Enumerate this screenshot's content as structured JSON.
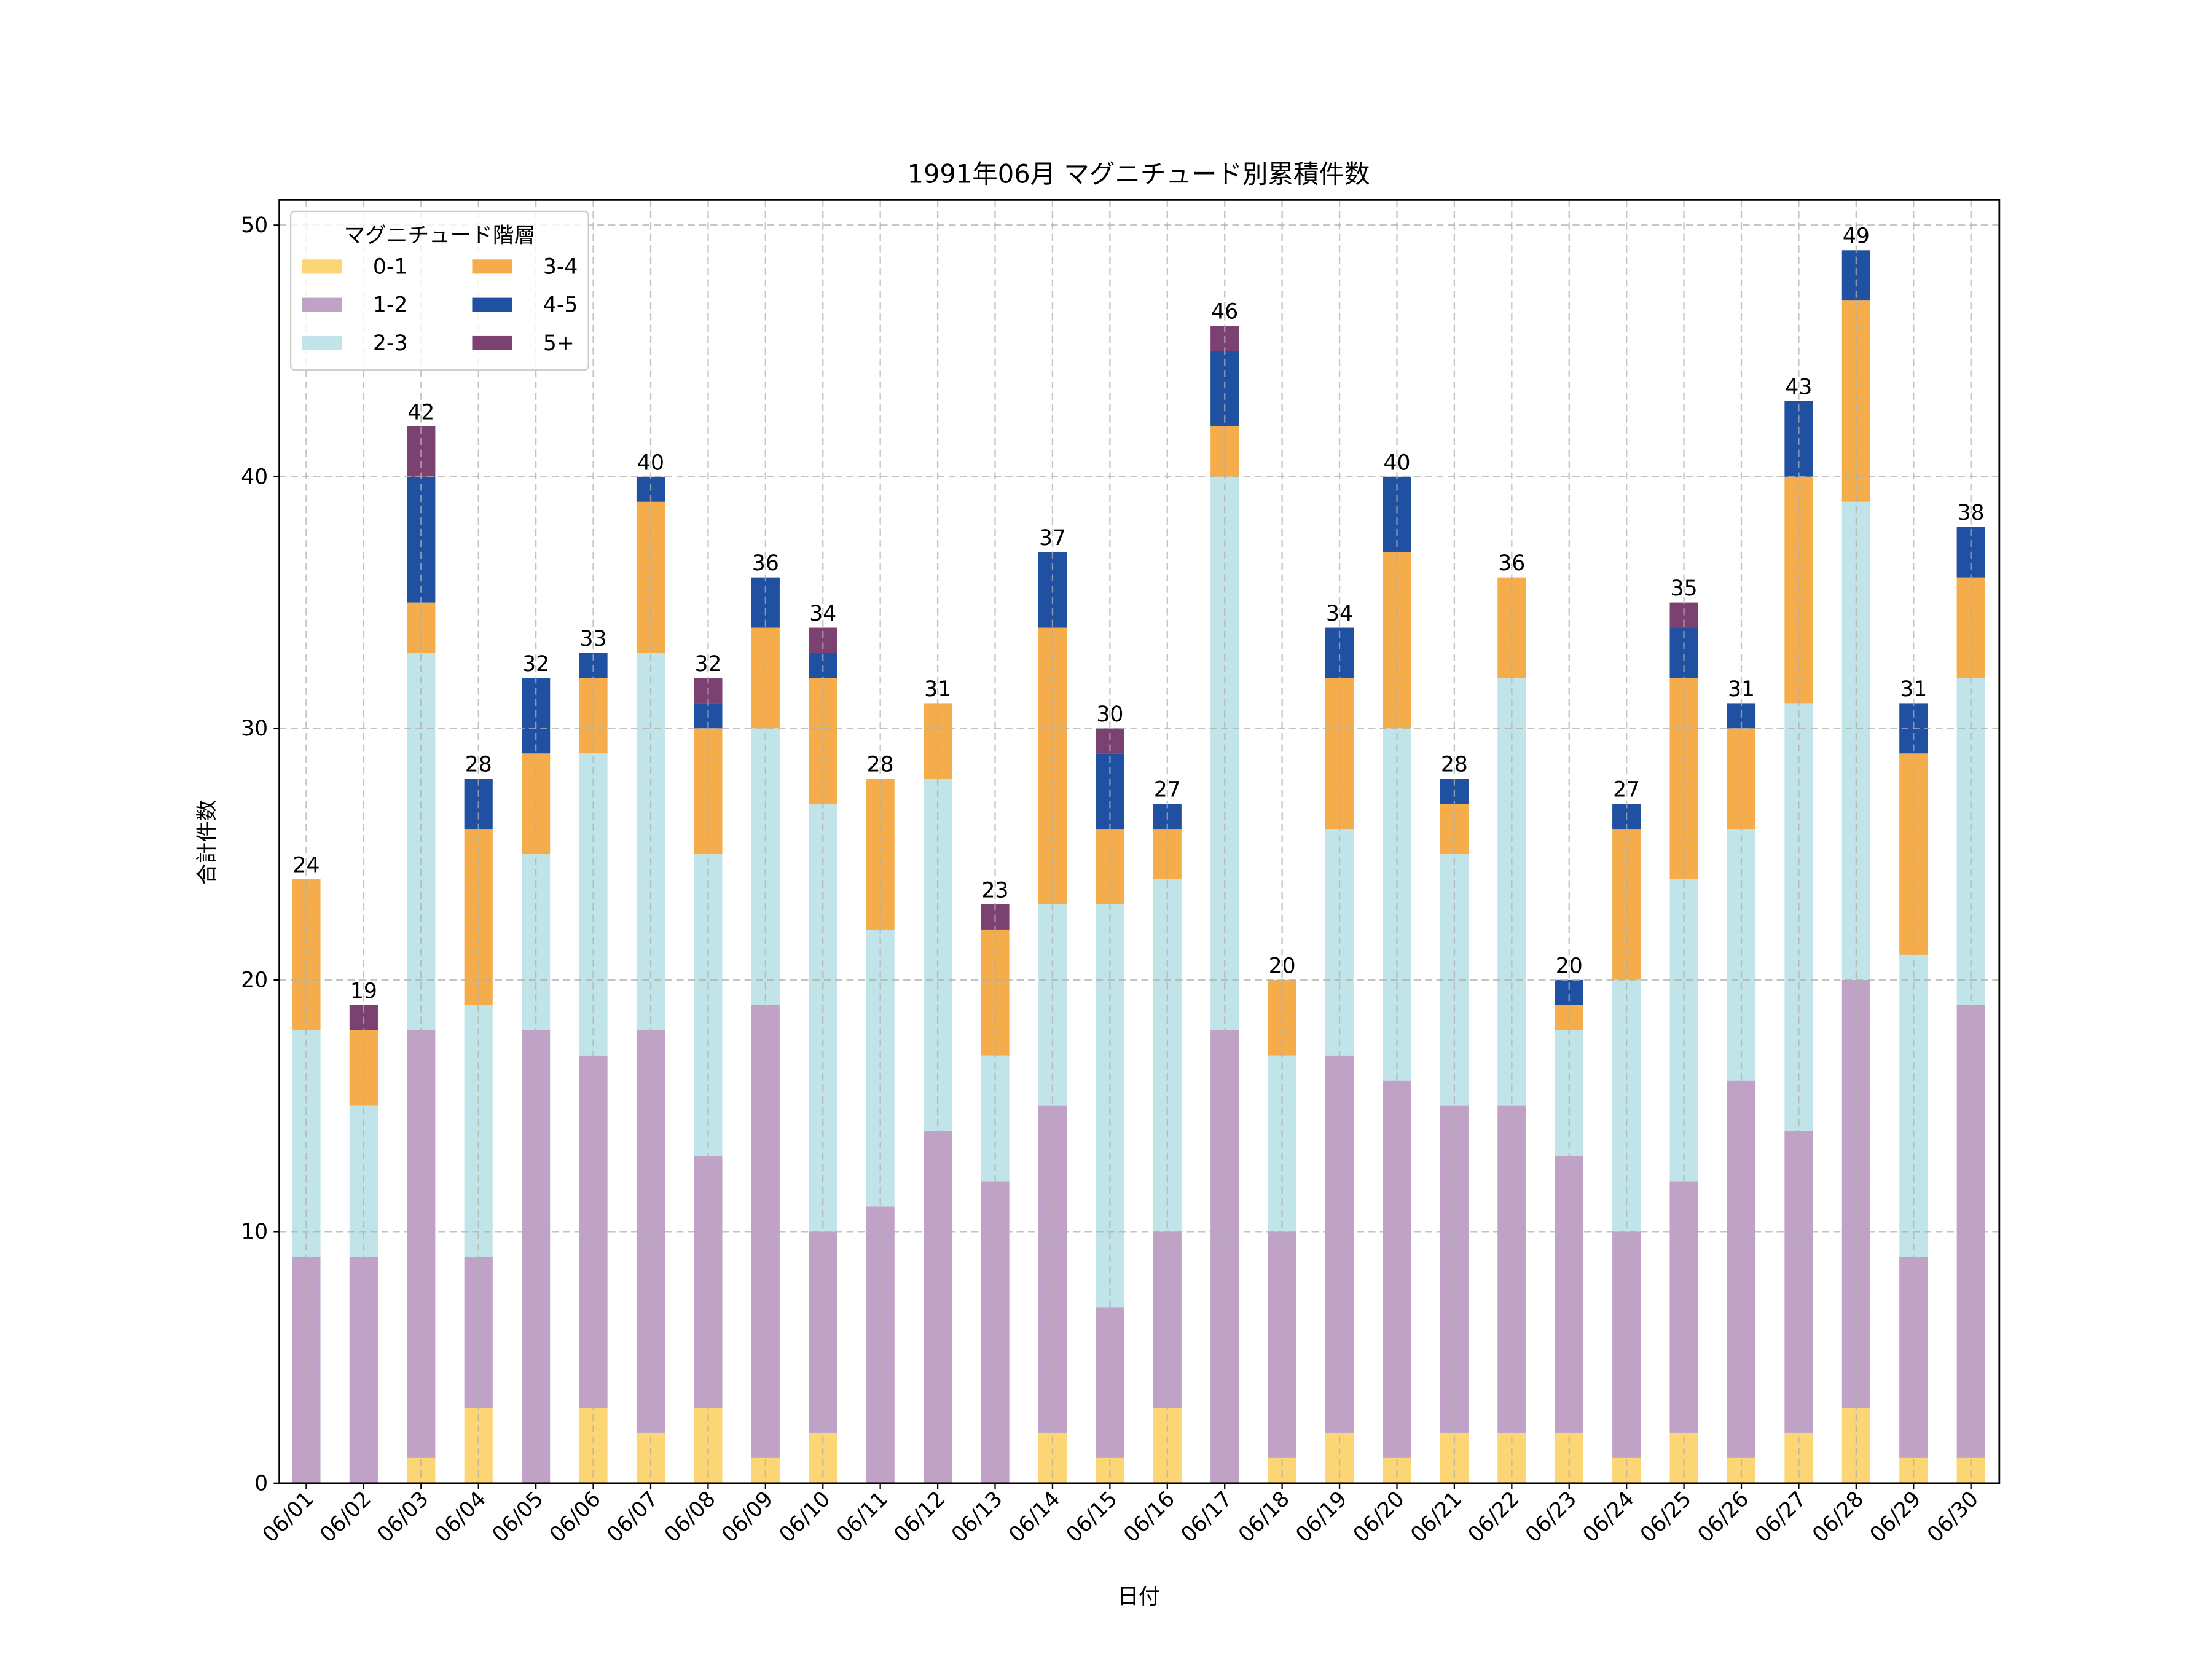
{
  "chart_data": {
    "type": "bar",
    "stacked": true,
    "title": "1991年06月 マグニチュード別累積件数",
    "xlabel": "日付",
    "ylabel": "合計件数",
    "ylim": [
      0,
      51
    ],
    "yticks": [
      0,
      10,
      20,
      30,
      40,
      50
    ],
    "grid": true,
    "legend": {
      "title": "マグニチュード階層",
      "placement": "top-left",
      "columns": 2
    },
    "categories": [
      "06/01",
      "06/02",
      "06/03",
      "06/04",
      "06/05",
      "06/06",
      "06/07",
      "06/08",
      "06/09",
      "06/10",
      "06/11",
      "06/12",
      "06/13",
      "06/14",
      "06/15",
      "06/16",
      "06/17",
      "06/18",
      "06/19",
      "06/20",
      "06/21",
      "06/22",
      "06/23",
      "06/24",
      "06/25",
      "06/26",
      "06/27",
      "06/28",
      "06/29",
      "06/30"
    ],
    "series": [
      {
        "name": "0-1",
        "color": "#fcd575",
        "values": [
          0,
          0,
          1,
          3,
          0,
          3,
          2,
          3,
          1,
          2,
          0,
          0,
          0,
          2,
          1,
          3,
          0,
          1,
          2,
          1,
          2,
          2,
          2,
          1,
          2,
          1,
          2,
          3,
          1,
          1
        ]
      },
      {
        "name": "1-2",
        "color": "#c0a2c7",
        "values": [
          9,
          9,
          17,
          6,
          18,
          14,
          16,
          10,
          18,
          8,
          11,
          14,
          12,
          13,
          6,
          7,
          18,
          9,
          15,
          15,
          13,
          13,
          11,
          9,
          10,
          15,
          12,
          17,
          8,
          18
        ]
      },
      {
        "name": "2-3",
        "color": "#c1e4e9",
        "values": [
          9,
          6,
          15,
          10,
          7,
          12,
          15,
          12,
          11,
          17,
          11,
          14,
          5,
          8,
          16,
          14,
          22,
          7,
          9,
          14,
          10,
          17,
          5,
          10,
          12,
          10,
          17,
          19,
          12,
          13
        ]
      },
      {
        "name": "3-4",
        "color": "#f5ac4a",
        "values": [
          6,
          3,
          2,
          7,
          4,
          3,
          6,
          5,
          4,
          5,
          6,
          3,
          5,
          11,
          3,
          2,
          2,
          3,
          6,
          7,
          2,
          4,
          1,
          6,
          8,
          4,
          9,
          8,
          8,
          4
        ]
      },
      {
        "name": "4-5",
        "color": "#1f50a2",
        "values": [
          0,
          0,
          5,
          2,
          3,
          1,
          1,
          1,
          2,
          1,
          0,
          0,
          0,
          3,
          3,
          1,
          3,
          0,
          2,
          3,
          1,
          0,
          1,
          1,
          2,
          1,
          3,
          2,
          2,
          2
        ]
      },
      {
        "name": "5+",
        "color": "#7b4171",
        "values": [
          0,
          1,
          2,
          0,
          0,
          0,
          0,
          1,
          0,
          1,
          0,
          0,
          1,
          0,
          1,
          0,
          1,
          0,
          0,
          0,
          0,
          0,
          0,
          0,
          1,
          0,
          0,
          0,
          0,
          0
        ]
      }
    ],
    "totals": [
      24,
      19,
      42,
      28,
      32,
      33,
      40,
      32,
      36,
      34,
      28,
      31,
      23,
      37,
      30,
      27,
      46,
      20,
      34,
      40,
      28,
      36,
      20,
      27,
      35,
      31,
      43,
      49,
      31,
      38
    ]
  }
}
